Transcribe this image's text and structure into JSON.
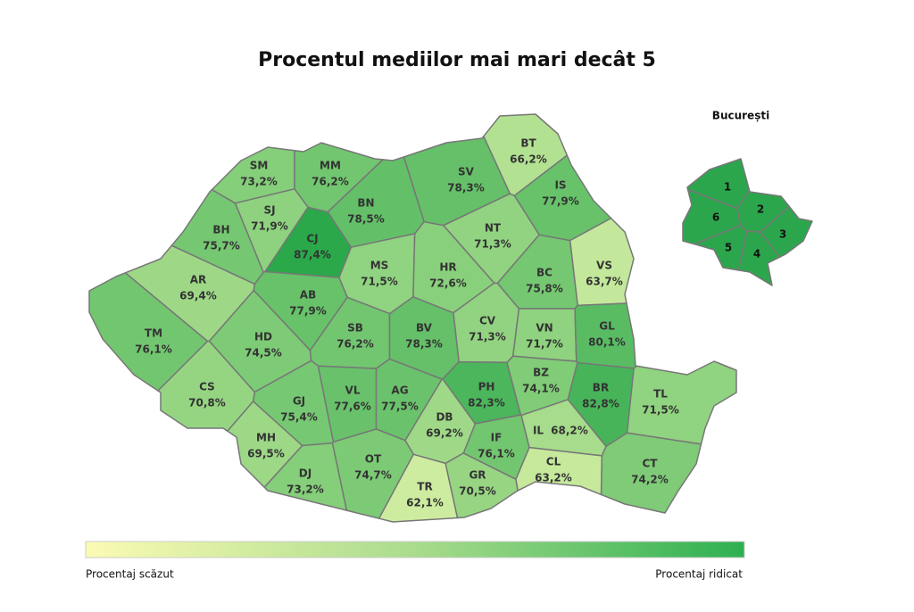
{
  "title": "Procentul mediilor mai mari decât 5",
  "inset": {
    "title": "București",
    "sectors": [
      "1",
      "2",
      "3",
      "4",
      "5",
      "6"
    ]
  },
  "legend": {
    "low": "Procentaj scăzut",
    "high": "Procentaj ridicat"
  },
  "counties": [
    {
      "code": "SM",
      "value": 73.2,
      "value_label": "73,2%"
    },
    {
      "code": "MM",
      "value": 76.2,
      "value_label": "76,2%"
    },
    {
      "code": "BT",
      "value": 66.2,
      "value_label": "66,2%"
    },
    {
      "code": "SV",
      "value": 78.3,
      "value_label": "78,3%"
    },
    {
      "code": "SJ",
      "value": 71.9,
      "value_label": "71,9%"
    },
    {
      "code": "BN",
      "value": 78.5,
      "value_label": "78,5%"
    },
    {
      "code": "BH",
      "value": 75.7,
      "value_label": "75,7%"
    },
    {
      "code": "CJ",
      "value": 87.4,
      "value_label": "87,4%"
    },
    {
      "code": "IS",
      "value": 77.9,
      "value_label": "77,9%"
    },
    {
      "code": "NT",
      "value": 71.3,
      "value_label": "71,3%"
    },
    {
      "code": "VS",
      "value": 63.7,
      "value_label": "63,7%"
    },
    {
      "code": "AR",
      "value": 69.4,
      "value_label": "69,4%"
    },
    {
      "code": "MS",
      "value": 71.5,
      "value_label": "71,5%"
    },
    {
      "code": "HR",
      "value": 72.6,
      "value_label": "72,6%"
    },
    {
      "code": "BC",
      "value": 75.8,
      "value_label": "75,8%"
    },
    {
      "code": "AB",
      "value": 77.9,
      "value_label": "77,9%"
    },
    {
      "code": "TM",
      "value": 76.1,
      "value_label": "76,1%"
    },
    {
      "code": "HD",
      "value": 74.5,
      "value_label": "74,5%"
    },
    {
      "code": "SB",
      "value": 76.2,
      "value_label": "76,2%"
    },
    {
      "code": "BV",
      "value": 78.3,
      "value_label": "78,3%"
    },
    {
      "code": "CV",
      "value": 71.3,
      "value_label": "71,3%"
    },
    {
      "code": "VN",
      "value": 71.7,
      "value_label": "71,7%"
    },
    {
      "code": "GL",
      "value": 80.1,
      "value_label": "80,1%"
    },
    {
      "code": "CS",
      "value": 70.8,
      "value_label": "70,8%"
    },
    {
      "code": "GJ",
      "value": 75.4,
      "value_label": "75,4%"
    },
    {
      "code": "VL",
      "value": 77.6,
      "value_label": "77,6%"
    },
    {
      "code": "AG",
      "value": 77.5,
      "value_label": "77,5%"
    },
    {
      "code": "DB",
      "value": 69.2,
      "value_label": "69,2%"
    },
    {
      "code": "PH",
      "value": 82.3,
      "value_label": "82,3%"
    },
    {
      "code": "BZ",
      "value": 74.1,
      "value_label": "74,1%"
    },
    {
      "code": "BR",
      "value": 82.8,
      "value_label": "82,8%"
    },
    {
      "code": "TL",
      "value": 71.5,
      "value_label": "71,5%"
    },
    {
      "code": "MH",
      "value": 69.5,
      "value_label": "69,5%"
    },
    {
      "code": "DJ",
      "value": 73.2,
      "value_label": "73,2%"
    },
    {
      "code": "OT",
      "value": 74.7,
      "value_label": "74,7%"
    },
    {
      "code": "TR",
      "value": 62.1,
      "value_label": "62,1%"
    },
    {
      "code": "GR",
      "value": 70.5,
      "value_label": "70,5%"
    },
    {
      "code": "IF",
      "value": 76.1,
      "value_label": "76,1%"
    },
    {
      "code": "IL",
      "value": 68.2,
      "value_label": "68,2%"
    },
    {
      "code": "CT",
      "value": 74.2,
      "value_label": "74,2%"
    },
    {
      "code": "CL",
      "value": 63.2,
      "value_label": "63,2%"
    }
  ]
}
